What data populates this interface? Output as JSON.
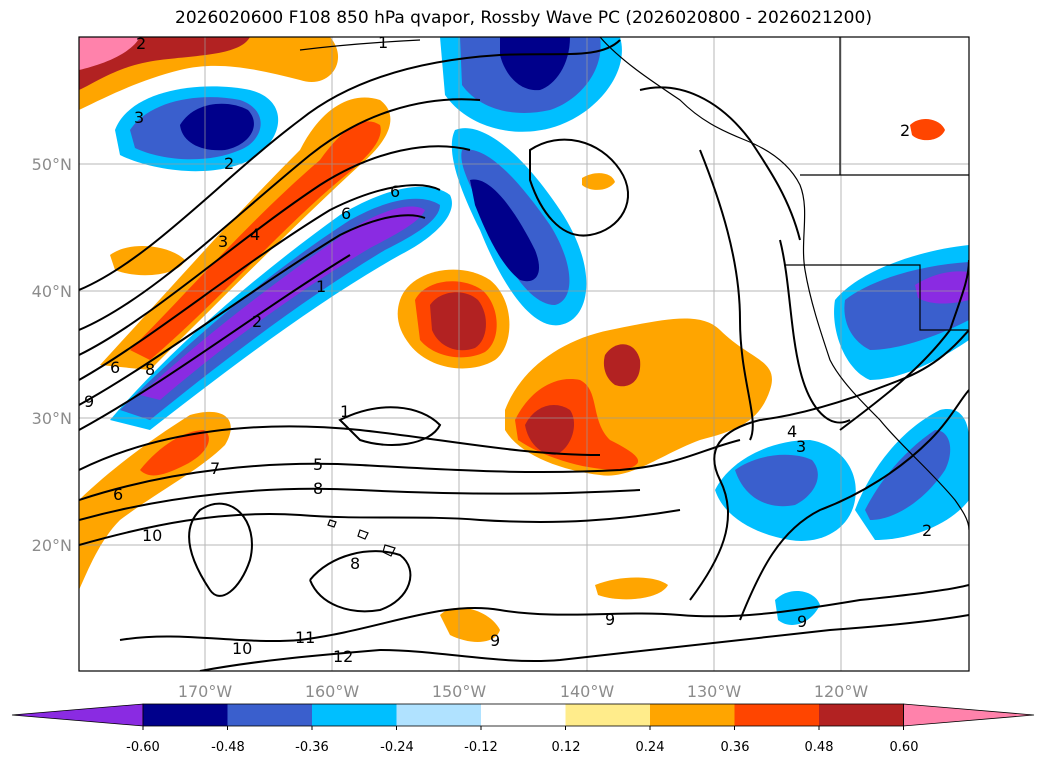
{
  "title": "2026020600 F108 850 hPa qvapor, Rossby Wave PC (2026020800 - 2026021200)",
  "lon_labels": [
    "170°W",
    "160°W",
    "150°W",
    "140°W",
    "130°W",
    "120°W"
  ],
  "lat_labels": [
    "50°N",
    "40°N",
    "30°N",
    "20°N"
  ],
  "colorbar": {
    "tick_labels": [
      "-0.60",
      "-0.48",
      "-0.36",
      "-0.24",
      "-0.12",
      "0.12",
      "0.24",
      "0.36",
      "0.48",
      "0.60"
    ],
    "colors": [
      "#8a2be2",
      "#00008b",
      "#3a5fcd",
      "#00bfff",
      "#b0e2ff",
      "#ffffff",
      "#ffec8b",
      "#ffa500",
      "#ff4500",
      "#b22222",
      "#ff82ab"
    ]
  },
  "contour_labels": [
    "2",
    "3",
    "2",
    "1",
    "3",
    "4",
    "6",
    "6",
    "1",
    "2",
    "8",
    "6",
    "9",
    "1",
    "7",
    "6",
    "5",
    "8",
    "10",
    "8",
    "10",
    "11",
    "12",
    "9",
    "9",
    "4",
    "3",
    "2",
    "9",
    "2"
  ],
  "colors": {
    "coast": "#000000",
    "contour": "#000000",
    "grid": "#9a9a9a"
  }
}
